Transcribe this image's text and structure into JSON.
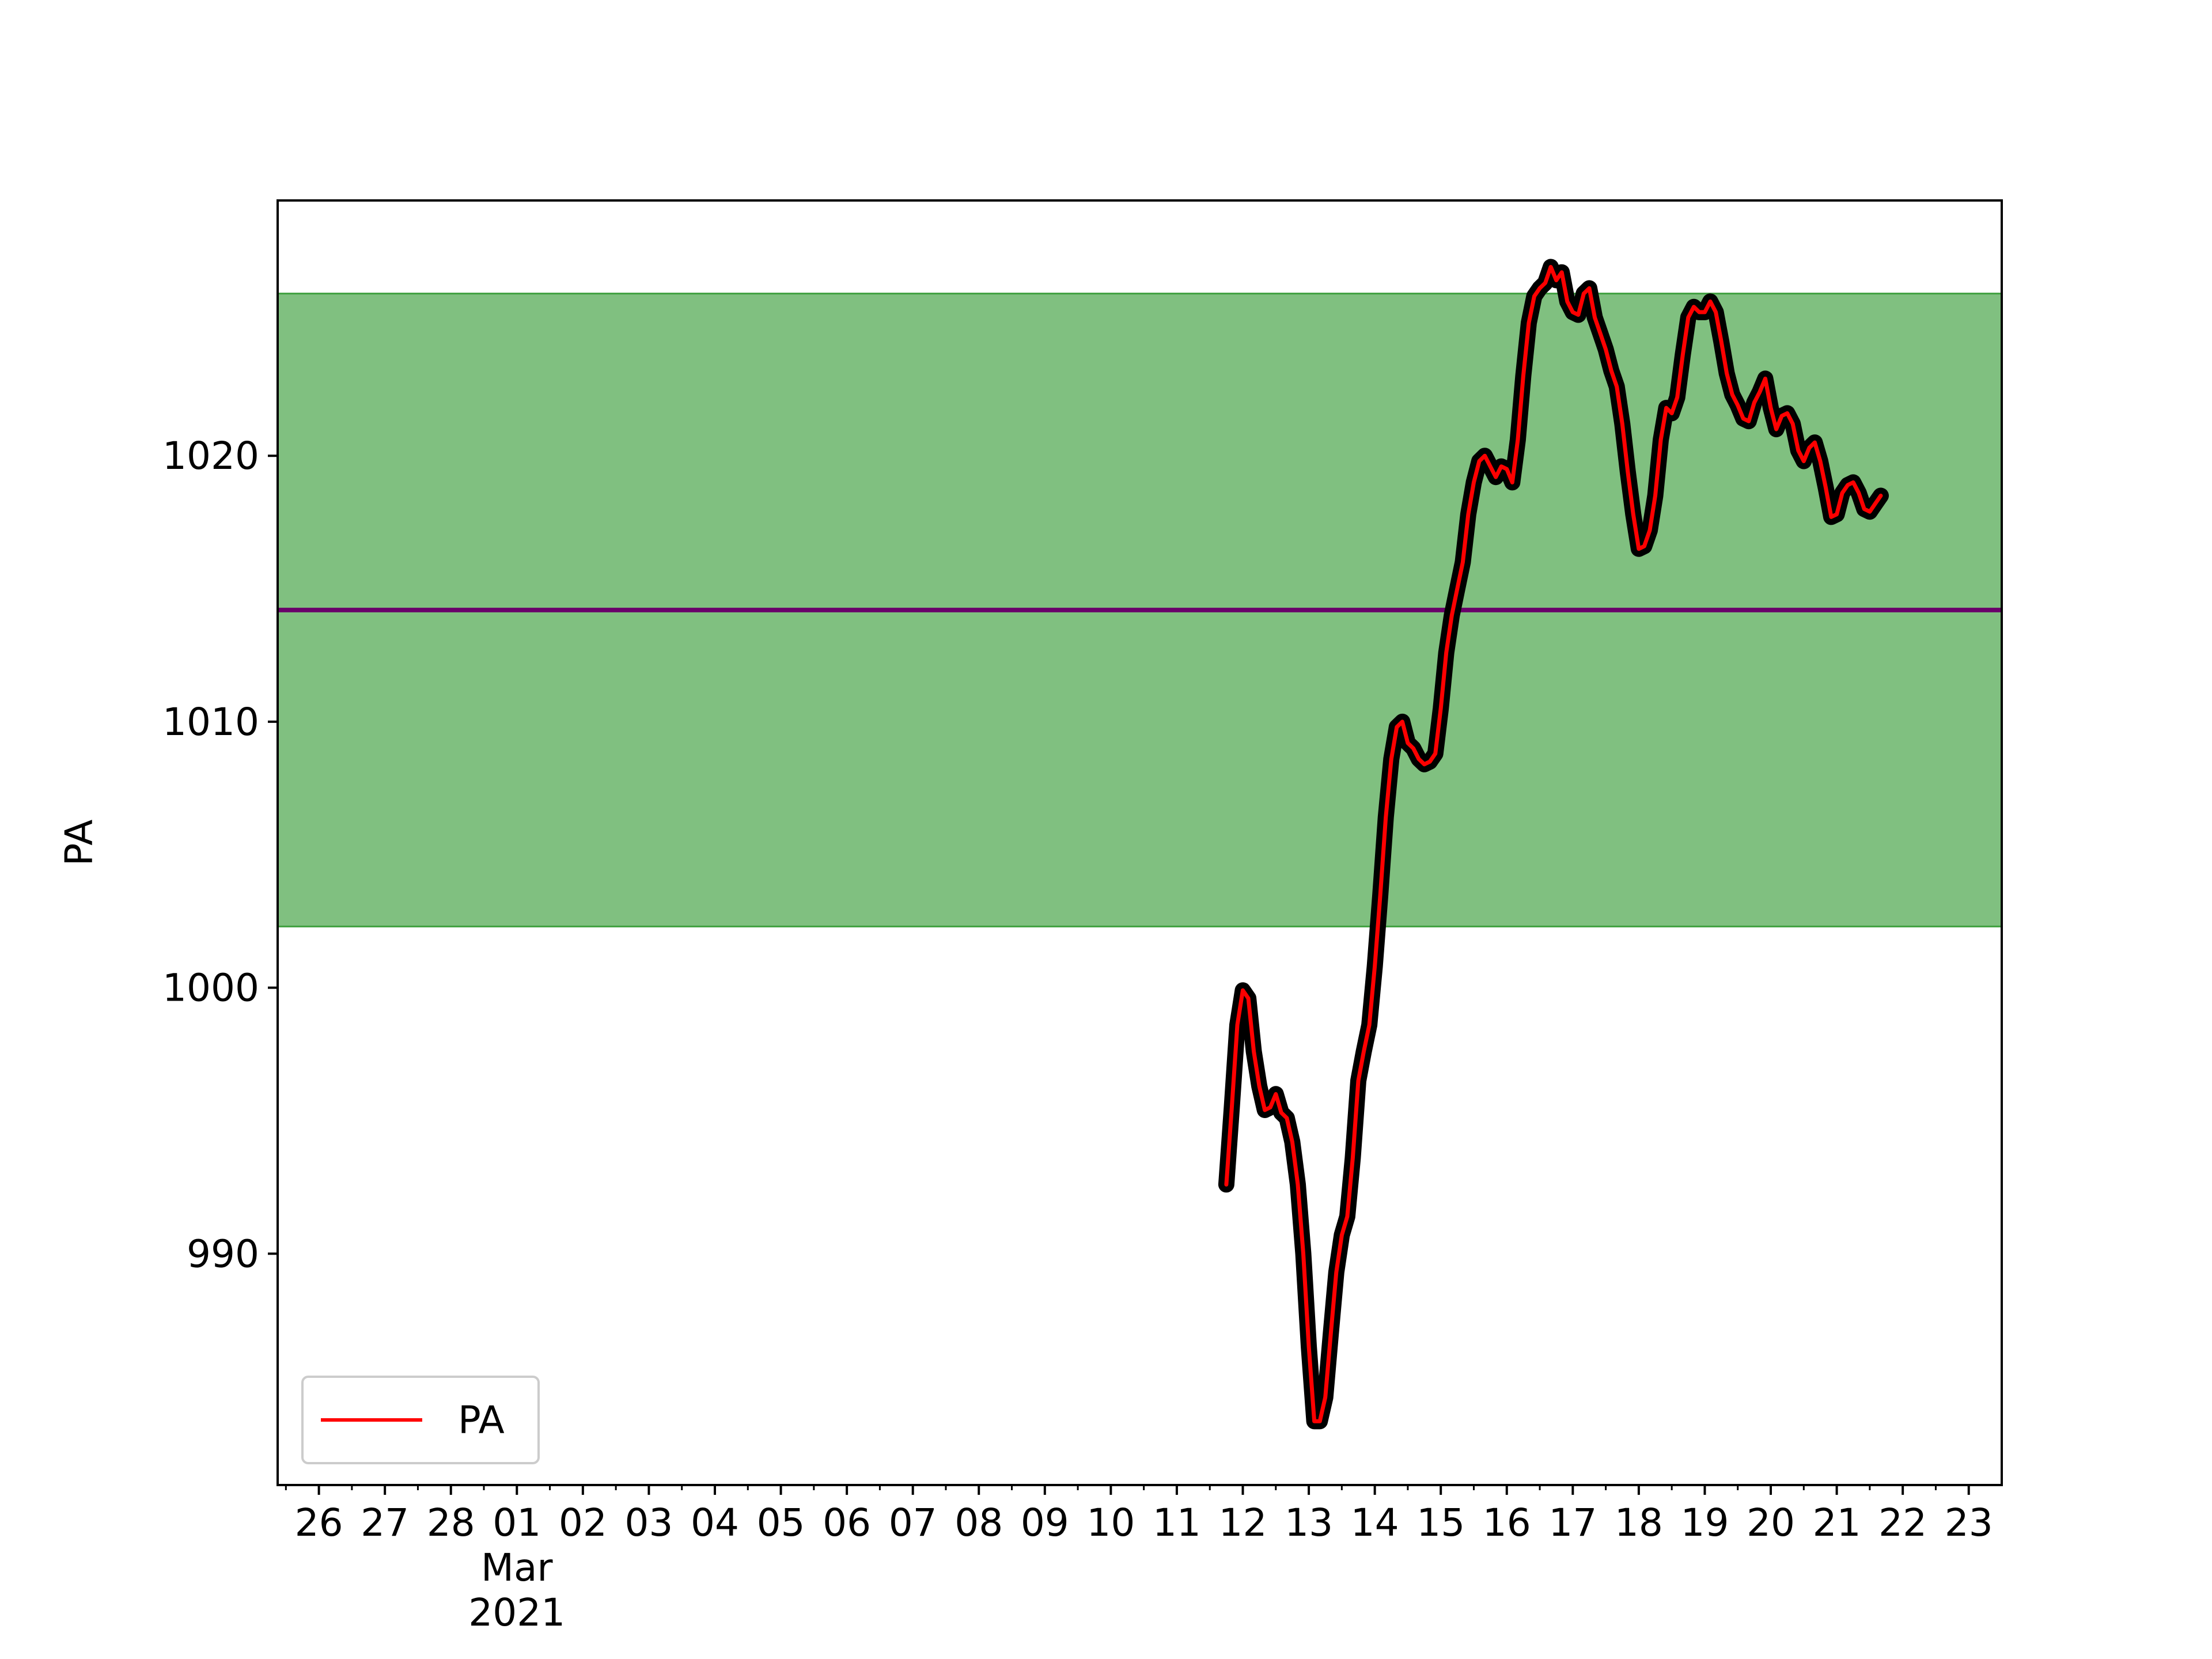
{
  "chart_data": {
    "type": "line",
    "ylabel": "PA",
    "ylim": [
      981.3,
      1029.6
    ],
    "xlim": [
      "2021-02-25T09:00",
      "2021-03-23T12:00"
    ],
    "y_ticks": [
      990,
      1000,
      1010,
      1020
    ],
    "x_ticks": [
      {
        "date": "2021-02-26",
        "label": "26"
      },
      {
        "date": "2021-02-27",
        "label": "27"
      },
      {
        "date": "2021-02-28",
        "label": "28"
      },
      {
        "date": "2021-03-01",
        "label": "01",
        "sub": [
          "Mar",
          "2021"
        ]
      },
      {
        "date": "2021-03-02",
        "label": "02"
      },
      {
        "date": "2021-03-03",
        "label": "03"
      },
      {
        "date": "2021-03-04",
        "label": "04"
      },
      {
        "date": "2021-03-05",
        "label": "05"
      },
      {
        "date": "2021-03-06",
        "label": "06"
      },
      {
        "date": "2021-03-07",
        "label": "07"
      },
      {
        "date": "2021-03-08",
        "label": "08"
      },
      {
        "date": "2021-03-09",
        "label": "09"
      },
      {
        "date": "2021-03-10",
        "label": "10"
      },
      {
        "date": "2021-03-11",
        "label": "11"
      },
      {
        "date": "2021-03-12",
        "label": "12"
      },
      {
        "date": "2021-03-13",
        "label": "13"
      },
      {
        "date": "2021-03-14",
        "label": "14"
      },
      {
        "date": "2021-03-15",
        "label": "15"
      },
      {
        "date": "2021-03-16",
        "label": "16"
      },
      {
        "date": "2021-03-17",
        "label": "17"
      },
      {
        "date": "2021-03-18",
        "label": "18"
      },
      {
        "date": "2021-03-19",
        "label": "19"
      },
      {
        "date": "2021-03-20",
        "label": "20"
      },
      {
        "date": "2021-03-21",
        "label": "21"
      },
      {
        "date": "2021-03-22",
        "label": "22"
      },
      {
        "date": "2021-03-23",
        "label": "23"
      }
    ],
    "band": {
      "low": 1002.3,
      "high": 1026.1,
      "color": "#80c080",
      "edge_color": "#3fa03f"
    },
    "mean_line": {
      "value": 1014.2,
      "color": "#6a006a"
    },
    "series": [
      {
        "name": "PA",
        "color": "#ff0000",
        "marker_color": "#000000",
        "points": [
          [
            "2021-03-11T18:00",
            992.6
          ],
          [
            "2021-03-11T20:00",
            995.5
          ],
          [
            "2021-03-11T22:00",
            998.6
          ],
          [
            "2021-03-12T00:00",
            999.9
          ],
          [
            "2021-03-12T02:00",
            999.6
          ],
          [
            "2021-03-12T04:00",
            997.6
          ],
          [
            "2021-03-12T06:00",
            996.3
          ],
          [
            "2021-03-12T08:00",
            995.4
          ],
          [
            "2021-03-12T10:00",
            995.5
          ],
          [
            "2021-03-12T12:00",
            996.0
          ],
          [
            "2021-03-12T14:00",
            995.3
          ],
          [
            "2021-03-12T16:00",
            995.1
          ],
          [
            "2021-03-12T18:00",
            994.2
          ],
          [
            "2021-03-12T20:00",
            992.6
          ],
          [
            "2021-03-12T22:00",
            990.0
          ],
          [
            "2021-03-13T00:00",
            986.5
          ],
          [
            "2021-03-13T02:00",
            983.7
          ],
          [
            "2021-03-13T04:00",
            983.7
          ],
          [
            "2021-03-13T06:00",
            984.6
          ],
          [
            "2021-03-13T08:00",
            987.0
          ],
          [
            "2021-03-13T10:00",
            989.3
          ],
          [
            "2021-03-13T12:00",
            990.7
          ],
          [
            "2021-03-13T14:00",
            991.4
          ],
          [
            "2021-03-13T16:00",
            993.6
          ],
          [
            "2021-03-13T18:00",
            996.5
          ],
          [
            "2021-03-13T20:00",
            997.6
          ],
          [
            "2021-03-13T22:00",
            998.6
          ],
          [
            "2021-03-14T00:00",
            1000.8
          ],
          [
            "2021-03-14T02:00",
            1003.5
          ],
          [
            "2021-03-14T04:00",
            1006.4
          ],
          [
            "2021-03-14T06:00",
            1008.6
          ],
          [
            "2021-03-14T08:00",
            1009.8
          ],
          [
            "2021-03-14T10:00",
            1010.0
          ],
          [
            "2021-03-14T12:00",
            1009.2
          ],
          [
            "2021-03-14T14:00",
            1009.0
          ],
          [
            "2021-03-14T16:00",
            1008.6
          ],
          [
            "2021-03-14T18:00",
            1008.4
          ],
          [
            "2021-03-14T20:00",
            1008.5
          ],
          [
            "2021-03-14T22:00",
            1008.8
          ],
          [
            "2021-03-15T00:00",
            1010.5
          ],
          [
            "2021-03-15T02:00",
            1012.6
          ],
          [
            "2021-03-15T04:00",
            1014.0
          ],
          [
            "2021-03-15T06:00",
            1015.0
          ],
          [
            "2021-03-15T08:00",
            1016.0
          ],
          [
            "2021-03-15T10:00",
            1017.8
          ],
          [
            "2021-03-15T12:00",
            1019.0
          ],
          [
            "2021-03-15T14:00",
            1019.8
          ],
          [
            "2021-03-15T16:00",
            1020.0
          ],
          [
            "2021-03-15T18:00",
            1019.6
          ],
          [
            "2021-03-15T20:00",
            1019.2
          ],
          [
            "2021-03-15T22:00",
            1019.6
          ],
          [
            "2021-03-16T00:00",
            1019.5
          ],
          [
            "2021-03-16T02:00",
            1019.0
          ],
          [
            "2021-03-16T04:00",
            1020.6
          ],
          [
            "2021-03-16T06:00",
            1023.0
          ],
          [
            "2021-03-16T08:00",
            1025.0
          ],
          [
            "2021-03-16T10:00",
            1026.0
          ],
          [
            "2021-03-16T12:00",
            1026.3
          ],
          [
            "2021-03-16T14:00",
            1026.5
          ],
          [
            "2021-03-16T16:00",
            1027.1
          ],
          [
            "2021-03-16T18:00",
            1026.6
          ],
          [
            "2021-03-16T20:00",
            1026.9
          ],
          [
            "2021-03-16T22:00",
            1025.8
          ],
          [
            "2021-03-17T00:00",
            1025.4
          ],
          [
            "2021-03-17T02:00",
            1025.3
          ],
          [
            "2021-03-17T04:00",
            1026.1
          ],
          [
            "2021-03-17T06:00",
            1026.3
          ],
          [
            "2021-03-17T08:00",
            1025.2
          ],
          [
            "2021-03-17T10:00",
            1024.6
          ],
          [
            "2021-03-17T12:00",
            1024.0
          ],
          [
            "2021-03-17T14:00",
            1023.2
          ],
          [
            "2021-03-17T16:00",
            1022.6
          ],
          [
            "2021-03-17T18:00",
            1021.2
          ],
          [
            "2021-03-17T20:00",
            1019.4
          ],
          [
            "2021-03-17T22:00",
            1017.8
          ],
          [
            "2021-03-18T00:00",
            1016.5
          ],
          [
            "2021-03-18T02:00",
            1016.6
          ],
          [
            "2021-03-18T04:00",
            1017.2
          ],
          [
            "2021-03-18T06:00",
            1018.5
          ],
          [
            "2021-03-18T08:00",
            1020.6
          ],
          [
            "2021-03-18T10:00",
            1021.8
          ],
          [
            "2021-03-18T12:00",
            1021.6
          ],
          [
            "2021-03-18T14:00",
            1022.2
          ],
          [
            "2021-03-18T16:00",
            1023.8
          ],
          [
            "2021-03-18T18:00",
            1025.2
          ],
          [
            "2021-03-18T20:00",
            1025.6
          ],
          [
            "2021-03-18T22:00",
            1025.4
          ],
          [
            "2021-03-19T00:00",
            1025.4
          ],
          [
            "2021-03-19T02:00",
            1025.8
          ],
          [
            "2021-03-19T04:00",
            1025.4
          ],
          [
            "2021-03-19T06:00",
            1024.3
          ],
          [
            "2021-03-19T08:00",
            1023.1
          ],
          [
            "2021-03-19T10:00",
            1022.3
          ],
          [
            "2021-03-19T12:00",
            1021.9
          ],
          [
            "2021-03-19T14:00",
            1021.4
          ],
          [
            "2021-03-19T16:00",
            1021.3
          ],
          [
            "2021-03-19T18:00",
            1022.0
          ],
          [
            "2021-03-19T20:00",
            1022.4
          ],
          [
            "2021-03-19T22:00",
            1022.9
          ],
          [
            "2021-03-20T00:00",
            1021.8
          ],
          [
            "2021-03-20T02:00",
            1021.0
          ],
          [
            "2021-03-20T04:00",
            1021.5
          ],
          [
            "2021-03-20T06:00",
            1021.6
          ],
          [
            "2021-03-20T08:00",
            1021.2
          ],
          [
            "2021-03-20T10:00",
            1020.2
          ],
          [
            "2021-03-20T12:00",
            1019.8
          ],
          [
            "2021-03-20T14:00",
            1020.3
          ],
          [
            "2021-03-20T16:00",
            1020.5
          ],
          [
            "2021-03-20T18:00",
            1019.8
          ],
          [
            "2021-03-20T20:00",
            1018.8
          ],
          [
            "2021-03-20T22:00",
            1017.7
          ],
          [
            "2021-03-21T00:00",
            1017.8
          ],
          [
            "2021-03-21T02:00",
            1018.6
          ],
          [
            "2021-03-21T04:00",
            1018.9
          ],
          [
            "2021-03-21T06:00",
            1019.0
          ],
          [
            "2021-03-21T08:00",
            1018.6
          ],
          [
            "2021-03-21T10:00",
            1018.0
          ],
          [
            "2021-03-21T12:00",
            1017.9
          ],
          [
            "2021-03-21T14:00",
            1018.2
          ],
          [
            "2021-03-21T16:00",
            1018.5
          ]
        ]
      }
    ],
    "legend": {
      "position": "lower-left",
      "entries": [
        "PA"
      ]
    }
  }
}
